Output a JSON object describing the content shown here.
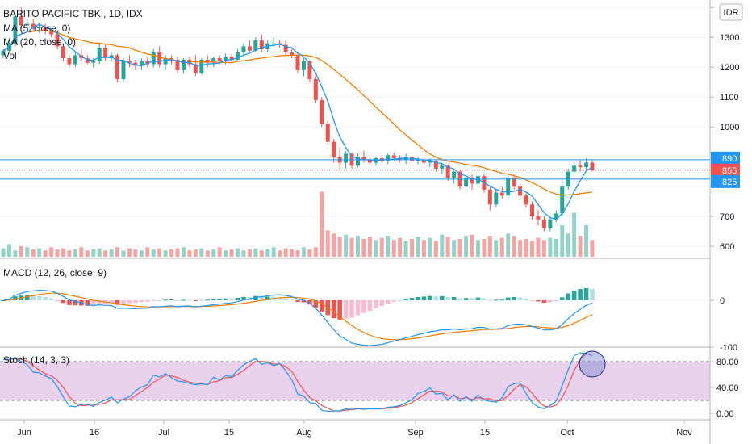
{
  "header": {
    "symbol_title": "BARITO PACIFIC TBK., 1D, IDX",
    "currency_button": "IDR"
  },
  "price_pane": {
    "indicators": [
      "MA (5, close, 0)",
      "MA (20, close, 0)",
      "Vol"
    ],
    "price_tags": [
      {
        "value": 890,
        "label": "890",
        "color": "#2196f3"
      },
      {
        "value": 855,
        "label": "855",
        "color": "#ef5350"
      },
      {
        "value": 825,
        "label": "825",
        "color": "#2196f3"
      }
    ],
    "hlines": [
      890,
      825
    ],
    "last_price_line": 855
  },
  "macd_pane": {
    "title": "MACD (12, 26, close, 9)"
  },
  "stoch_pane": {
    "title": "Stoch (14, 3, 3)"
  },
  "x_axis": {
    "labels": [
      "Jun",
      "16",
      "Jul",
      "15",
      "Aug",
      "Sep",
      "15",
      "Oct",
      "Nov"
    ]
  },
  "colors": {
    "up": "#26a69a",
    "down": "#ef5350",
    "ma5": "#2196f3",
    "ma20": "#f57c00",
    "stoch_k": "#2196f3",
    "stoch_d": "#ef5350",
    "stoch_band": "#e1bee7",
    "vol_up": "#94d3c9",
    "vol_down": "#f5a3a3",
    "macd_up": "#26a69a",
    "macd_down": "#ef5350",
    "macd_up_light": "#b2dfdb",
    "macd_down_light": "#f8bbd0"
  },
  "chart_data": {
    "type": "candlestick",
    "title": "BARITO PACIFIC TBK., 1D, IDX",
    "price_axis": {
      "ticks": [
        1400,
        1300,
        1200,
        1100,
        1000,
        900,
        800,
        700,
        600
      ],
      "labels": [
        "1400",
        "1300",
        "1200",
        "1100",
        "1000",
        "",
        "",
        "700",
        "600"
      ],
      "ylim": [
        565,
        1425
      ]
    },
    "macd_axis": {
      "ticks": [
        0,
        -100
      ],
      "labels": [
        "0",
        "-100"
      ]
    },
    "stoch_axis": {
      "ticks": [
        80,
        40,
        0
      ],
      "labels": [
        "80.00",
        "40.00",
        "0.00"
      ],
      "bands": [
        80,
        20
      ]
    },
    "candles": [
      [
        1240,
        1260,
        1230,
        1255
      ],
      [
        1255,
        1290,
        1250,
        1280
      ],
      [
        1280,
        1380,
        1270,
        1370
      ],
      [
        1370,
        1400,
        1330,
        1340
      ],
      [
        1340,
        1360,
        1320,
        1345
      ],
      [
        1345,
        1360,
        1320,
        1330
      ],
      [
        1330,
        1350,
        1315,
        1335
      ],
      [
        1335,
        1345,
        1310,
        1320
      ],
      [
        1320,
        1330,
        1300,
        1310
      ],
      [
        1310,
        1320,
        1260,
        1270
      ],
      [
        1270,
        1280,
        1220,
        1230
      ],
      [
        1230,
        1240,
        1200,
        1210
      ],
      [
        1210,
        1250,
        1200,
        1240
      ],
      [
        1240,
        1260,
        1220,
        1230
      ],
      [
        1230,
        1240,
        1210,
        1215
      ],
      [
        1215,
        1230,
        1200,
        1220
      ],
      [
        1220,
        1280,
        1210,
        1265
      ],
      [
        1265,
        1280,
        1220,
        1230
      ],
      [
        1230,
        1250,
        1220,
        1240
      ],
      [
        1240,
        1245,
        1150,
        1160
      ],
      [
        1160,
        1230,
        1150,
        1220
      ],
      [
        1220,
        1240,
        1200,
        1215
      ],
      [
        1215,
        1225,
        1190,
        1205
      ],
      [
        1205,
        1230,
        1190,
        1220
      ],
      [
        1220,
        1235,
        1200,
        1210
      ],
      [
        1210,
        1260,
        1200,
        1250
      ],
      [
        1250,
        1270,
        1200,
        1210
      ],
      [
        1210,
        1240,
        1190,
        1230
      ],
      [
        1230,
        1240,
        1210,
        1225
      ],
      [
        1225,
        1235,
        1180,
        1190
      ],
      [
        1190,
        1230,
        1180,
        1225
      ],
      [
        1225,
        1235,
        1200,
        1210
      ],
      [
        1210,
        1240,
        1170,
        1180
      ],
      [
        1180,
        1230,
        1175,
        1225
      ],
      [
        1225,
        1240,
        1200,
        1215
      ],
      [
        1215,
        1235,
        1200,
        1230
      ],
      [
        1230,
        1240,
        1210,
        1220
      ],
      [
        1220,
        1245,
        1210,
        1235
      ],
      [
        1235,
        1245,
        1215,
        1225
      ],
      [
        1225,
        1260,
        1220,
        1250
      ],
      [
        1250,
        1280,
        1240,
        1270
      ],
      [
        1270,
        1290,
        1245,
        1255
      ],
      [
        1255,
        1300,
        1250,
        1290
      ],
      [
        1290,
        1310,
        1250,
        1260
      ],
      [
        1260,
        1290,
        1250,
        1280
      ],
      [
        1280,
        1300,
        1270,
        1280
      ],
      [
        1280,
        1290,
        1265,
        1275
      ],
      [
        1275,
        1290,
        1240,
        1250
      ],
      [
        1250,
        1260,
        1230,
        1240
      ],
      [
        1240,
        1250,
        1180,
        1190
      ],
      [
        1190,
        1230,
        1170,
        1220
      ],
      [
        1220,
        1225,
        1150,
        1160
      ],
      [
        1160,
        1170,
        1080,
        1090
      ],
      [
        1090,
        1100,
        1000,
        1010
      ],
      [
        1010,
        1020,
        940,
        950
      ],
      [
        950,
        960,
        880,
        900
      ],
      [
        900,
        930,
        860,
        880
      ],
      [
        880,
        920,
        860,
        910
      ],
      [
        910,
        915,
        860,
        870
      ],
      [
        870,
        910,
        865,
        900
      ],
      [
        900,
        920,
        880,
        890
      ],
      [
        890,
        905,
        870,
        880
      ],
      [
        880,
        900,
        870,
        895
      ],
      [
        895,
        905,
        880,
        885
      ],
      [
        885,
        910,
        875,
        905
      ],
      [
        905,
        915,
        885,
        895
      ],
      [
        895,
        905,
        880,
        890
      ],
      [
        890,
        910,
        875,
        900
      ],
      [
        900,
        905,
        880,
        885
      ],
      [
        885,
        900,
        875,
        890
      ],
      [
        890,
        900,
        870,
        880
      ],
      [
        880,
        895,
        865,
        885
      ],
      [
        885,
        890,
        850,
        860
      ],
      [
        860,
        880,
        840,
        870
      ],
      [
        870,
        875,
        820,
        830
      ],
      [
        830,
        860,
        810,
        850
      ],
      [
        850,
        855,
        790,
        800
      ],
      [
        800,
        840,
        790,
        830
      ],
      [
        830,
        840,
        790,
        810
      ],
      [
        810,
        840,
        800,
        835
      ],
      [
        835,
        845,
        780,
        790
      ],
      [
        790,
        800,
        720,
        740
      ],
      [
        740,
        790,
        730,
        780
      ],
      [
        780,
        800,
        760,
        770
      ],
      [
        770,
        840,
        760,
        830
      ],
      [
        830,
        840,
        790,
        800
      ],
      [
        800,
        810,
        760,
        770
      ],
      [
        770,
        780,
        730,
        740
      ],
      [
        740,
        750,
        690,
        700
      ],
      [
        700,
        720,
        670,
        690
      ],
      [
        690,
        700,
        650,
        660
      ],
      [
        660,
        700,
        650,
        690
      ],
      [
        690,
        720,
        680,
        710
      ],
      [
        710,
        820,
        700,
        800
      ],
      [
        800,
        860,
        790,
        850
      ],
      [
        850,
        880,
        840,
        870
      ],
      [
        870,
        890,
        850,
        865
      ],
      [
        865,
        895,
        855,
        880
      ],
      [
        880,
        890,
        850,
        855
      ]
    ],
    "volume": [
      0.08,
      0.12,
      0.06,
      0.1,
      0.09,
      0.07,
      0.08,
      0.06,
      0.09,
      0.07,
      0.08,
      0.06,
      0.07,
      0.09,
      0.06,
      0.07,
      0.08,
      0.06,
      0.07,
      0.09,
      0.06,
      0.08,
      0.07,
      0.06,
      0.09,
      0.07,
      0.08,
      0.06,
      0.07,
      0.08,
      0.09,
      0.06,
      0.07,
      0.08,
      0.06,
      0.07,
      0.09,
      0.06,
      0.07,
      0.08,
      0.06,
      0.07,
      0.08,
      0.06,
      0.07,
      0.09,
      0.06,
      0.08,
      0.07,
      0.06,
      0.09,
      0.07,
      0.09,
      0.62,
      0.25,
      0.22,
      0.19,
      0.21,
      0.18,
      0.2,
      0.17,
      0.19,
      0.16,
      0.18,
      0.2,
      0.16,
      0.18,
      0.15,
      0.17,
      0.19,
      0.16,
      0.18,
      0.15,
      0.21,
      0.19,
      0.16,
      0.17,
      0.2,
      0.21,
      0.16,
      0.17,
      0.2,
      0.16,
      0.18,
      0.22,
      0.2,
      0.16,
      0.17,
      0.15,
      0.18,
      0.16,
      0.18,
      0.17,
      0.3,
      0.22,
      0.42,
      0.2,
      0.3,
      0.16
    ]
  }
}
